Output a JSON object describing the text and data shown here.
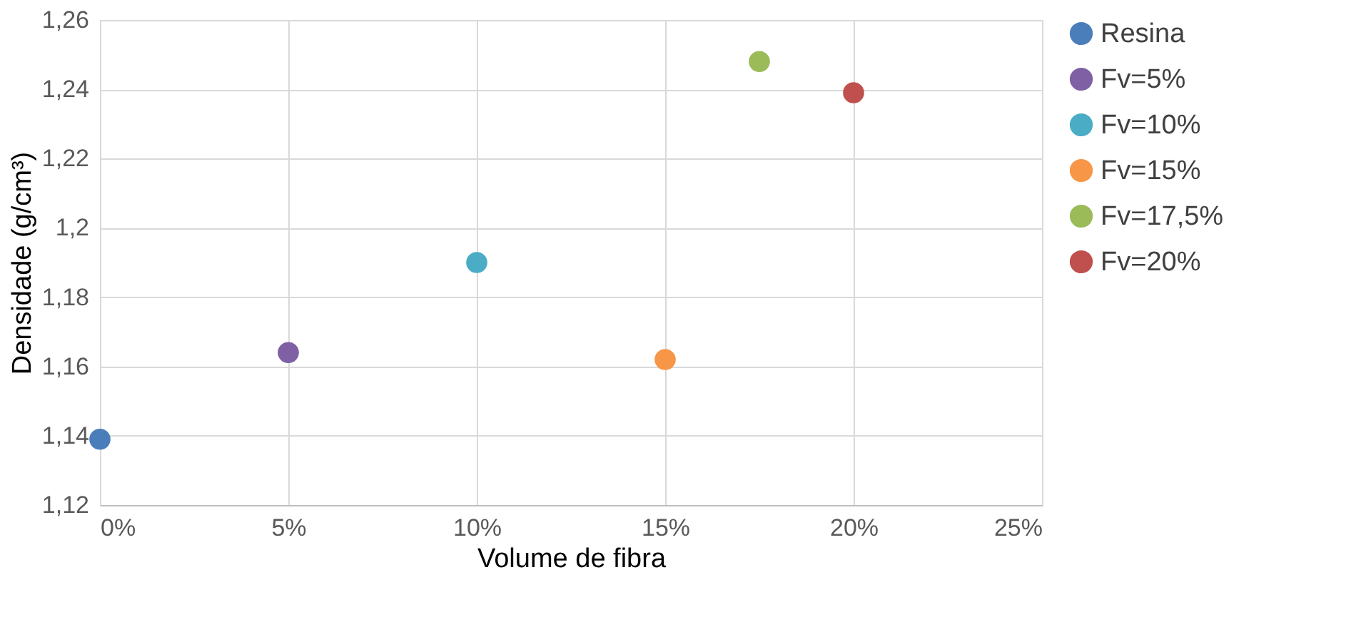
{
  "chart_data": {
    "type": "scatter",
    "xlabel": "Volume de fibra",
    "ylabel": "Densidade (g/cm³)",
    "series": [
      {
        "name": "Resina",
        "color": "#4a7ebb",
        "x": [
          0
        ],
        "values": [
          1.139
        ]
      },
      {
        "name": "Fv=5%",
        "color": "#7f60a5",
        "x": [
          0.05
        ],
        "values": [
          1.164
        ]
      },
      {
        "name": "Fv=10%",
        "color": "#4bacc6",
        "x": [
          0.1
        ],
        "values": [
          1.19
        ]
      },
      {
        "name": "Fv=15%",
        "color": "#f79646",
        "x": [
          0.15
        ],
        "values": [
          1.162
        ]
      },
      {
        "name": "Fv=17,5%",
        "color": "#9bbb59",
        "x": [
          0.175
        ],
        "values": [
          1.248
        ]
      },
      {
        "name": "Fv=20%",
        "color": "#c0504d",
        "x": [
          0.2
        ],
        "values": [
          1.239
        ]
      }
    ],
    "xlim": [
      0,
      0.25
    ],
    "xticks": [
      {
        "value": 0,
        "label": "0%"
      },
      {
        "value": 0.05,
        "label": "5%"
      },
      {
        "value": 0.1,
        "label": "10%"
      },
      {
        "value": 0.15,
        "label": "15%"
      },
      {
        "value": 0.2,
        "label": "20%"
      },
      {
        "value": 0.25,
        "label": "25%"
      }
    ],
    "ylim": [
      1.12,
      1.26
    ],
    "yticks": [
      {
        "value": 1.12,
        "label": "1,12"
      },
      {
        "value": 1.14,
        "label": "1,14"
      },
      {
        "value": 1.16,
        "label": "1,16"
      },
      {
        "value": 1.18,
        "label": "1,18"
      },
      {
        "value": 1.2,
        "label": "1,2"
      },
      {
        "value": 1.22,
        "label": "1,22"
      },
      {
        "value": 1.24,
        "label": "1,24"
      },
      {
        "value": 1.26,
        "label": "1,26"
      }
    ],
    "grid": true,
    "legend": "right",
    "marker": "circle"
  }
}
